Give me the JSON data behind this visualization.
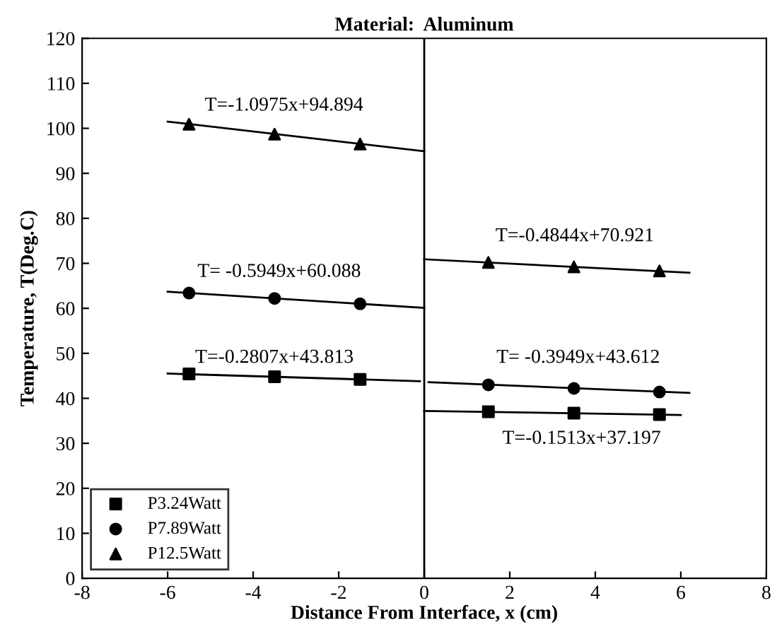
{
  "chart_data": {
    "type": "scatter",
    "title": "Material:  Aluminum",
    "xlabel": "Distance From Interface, x (cm)",
    "ylabel": "Temperature, T(Deg.C)",
    "xlim": [
      -8,
      8
    ],
    "xticks": [
      -8,
      -6,
      -4,
      -2,
      0,
      2,
      4,
      6,
      8
    ],
    "ylim": [
      0,
      120
    ],
    "yticks": [
      0,
      10,
      20,
      30,
      40,
      50,
      60,
      70,
      80,
      90,
      100,
      110,
      120
    ],
    "grid": false,
    "legend": "bottom left",
    "series": [
      {
        "name": "P3.24Watt",
        "color": "#000000",
        "marker": "square",
        "x": [
          -5.5,
          -3.5,
          -1.5,
          1.5,
          3.5,
          5.5
        ],
        "values": [
          45.4,
          44.8,
          44.2,
          37.0,
          36.7,
          36.4
        ]
      },
      {
        "name": "P7.89Watt",
        "color": "#000000",
        "marker": "circle",
        "x": [
          -5.5,
          -3.5,
          -1.5,
          1.5,
          3.5,
          5.5
        ],
        "values": [
          63.4,
          62.2,
          61.0,
          43.0,
          42.2,
          41.4
        ]
      },
      {
        "name": "P12.5Watt",
        "color": "#000000",
        "marker": "triangle",
        "x": [
          -5.5,
          -3.5,
          -1.5,
          1.5,
          3.5,
          5.5
        ],
        "values": [
          100.9,
          98.7,
          96.5,
          70.2,
          69.2,
          68.3
        ]
      },
      {
        "type": "line",
        "color": "#000000",
        "x": [
          -6,
          -0.1
        ],
        "values": [
          45.5,
          43.8
        ]
      },
      {
        "type": "line",
        "color": "#000000",
        "x": [
          0,
          6
        ],
        "values": [
          37.2,
          36.3
        ]
      },
      {
        "type": "line",
        "color": "#000000",
        "x": [
          -6,
          0
        ],
        "values": [
          63.7,
          60.1
        ]
      },
      {
        "type": "line",
        "color": "#000000",
        "x": [
          0.1,
          6.2
        ],
        "values": [
          43.6,
          41.2
        ]
      },
      {
        "type": "line",
        "color": "#000000",
        "x": [
          -6,
          0
        ],
        "values": [
          101.5,
          94.9
        ]
      },
      {
        "type": "line",
        "color": "#000000",
        "x": [
          0,
          6.2
        ],
        "values": [
          70.9,
          67.9
        ]
      }
    ],
    "ref_lines": [
      {
        "axis": "x",
        "value": 0,
        "color": "#000000"
      }
    ],
    "annotations": [
      "T=-1.0975x+94.894",
      "T= -0.5949x+60.088",
      "T=-0.2807x+43.813",
      "T=-0.4844x+70.921",
      "T= -0.3949x+43.612",
      "T=-0.1513x+37.197"
    ]
  }
}
